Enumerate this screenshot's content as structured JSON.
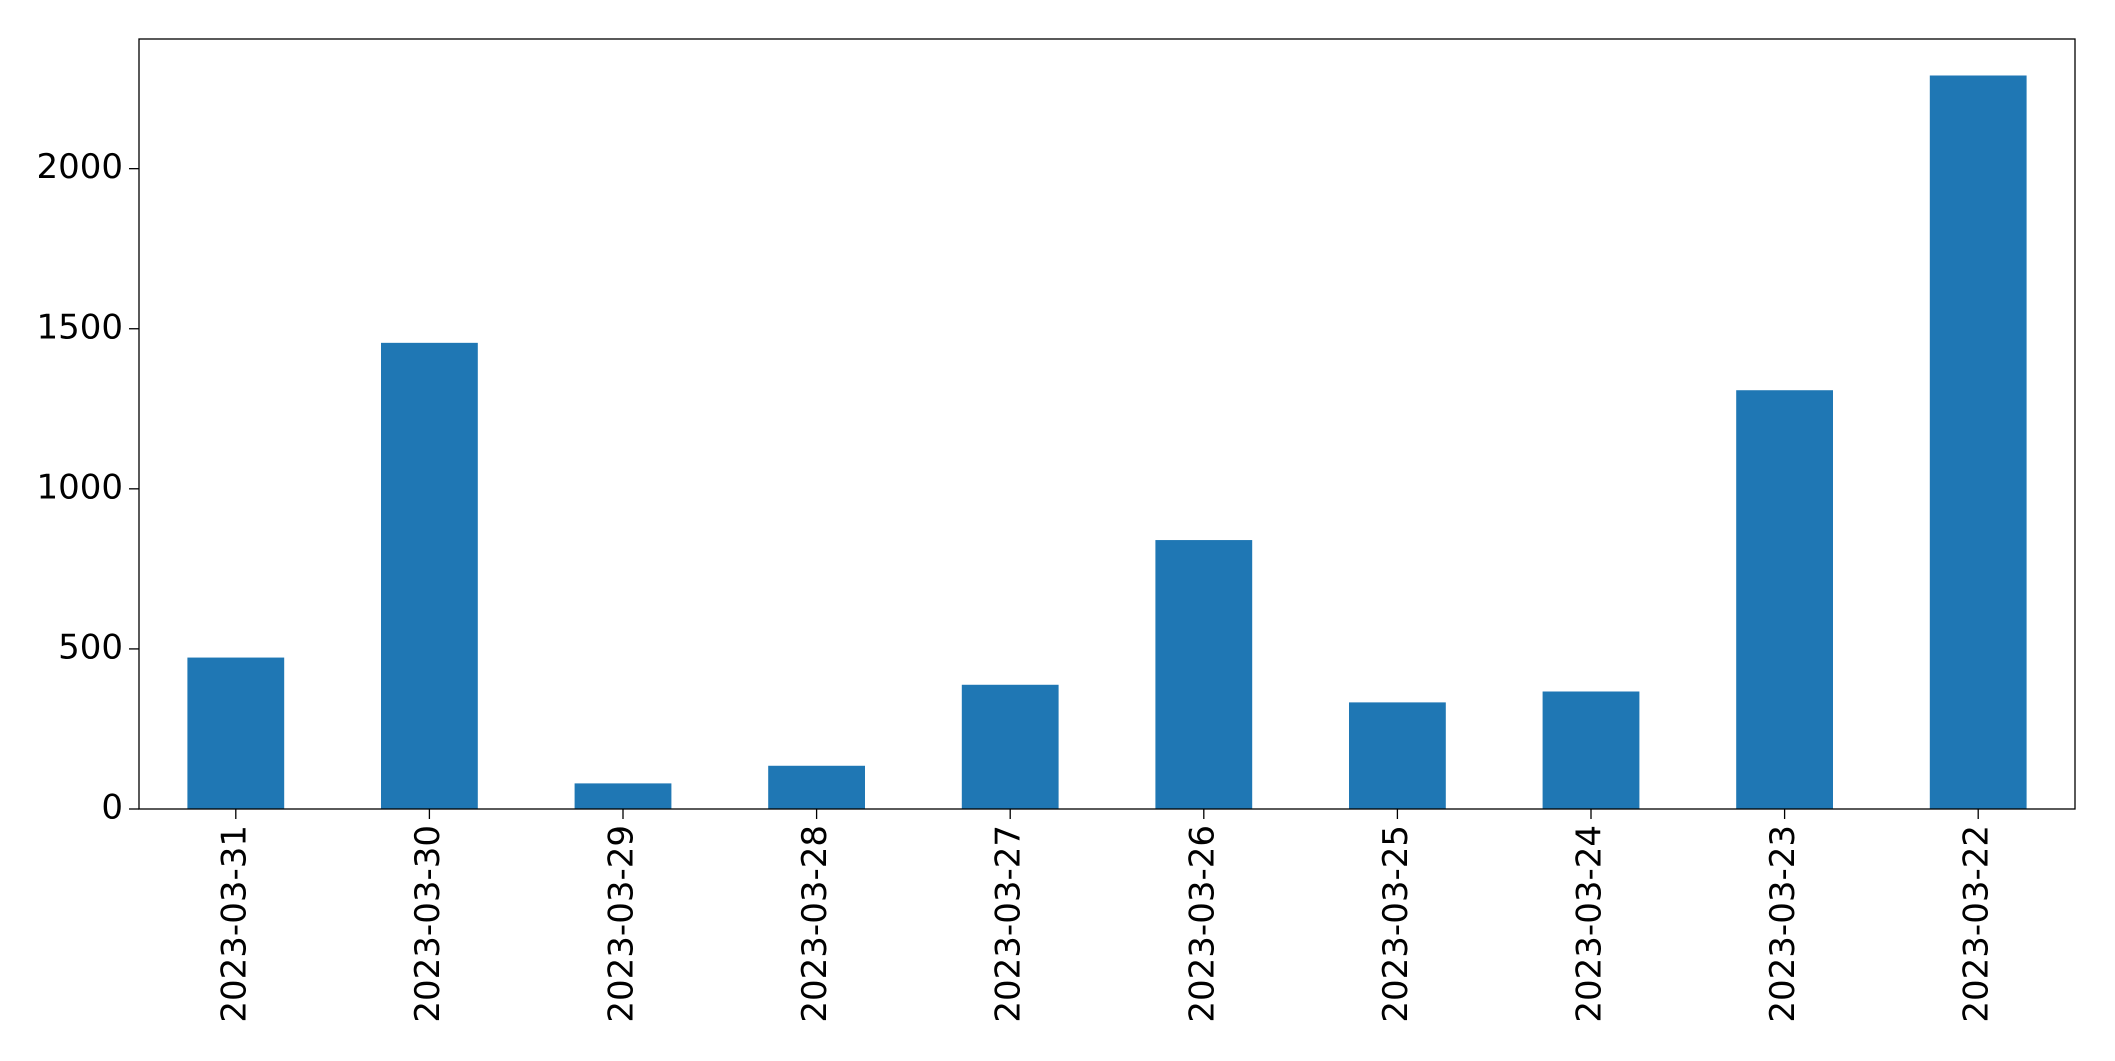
{
  "chart_data": {
    "type": "bar",
    "categories": [
      "2023-03-31",
      "2023-03-30",
      "2023-03-29",
      "2023-03-28",
      "2023-03-27",
      "2023-03-26",
      "2023-03-25",
      "2023-03-24",
      "2023-03-23",
      "2023-03-22"
    ],
    "values": [
      473,
      1456,
      80,
      135,
      388,
      840,
      333,
      367,
      1308,
      2291
    ],
    "color": "#1f77b4",
    "ylim": [
      0,
      2405
    ],
    "yticks": [
      0,
      500,
      1000,
      1500,
      2000
    ],
    "grid": false
  }
}
